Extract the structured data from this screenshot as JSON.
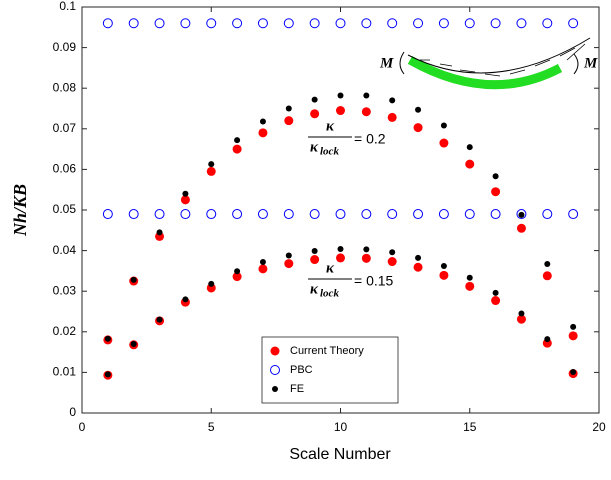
{
  "chart_data": {
    "type": "scatter",
    "xlabel": "Scale Number",
    "ylabel": "Nh/KB",
    "x": [
      1,
      2,
      3,
      4,
      5,
      6,
      7,
      8,
      9,
      10,
      11,
      12,
      13,
      14,
      15,
      16,
      17,
      18,
      19,
      1,
      2,
      3,
      4,
      5,
      6,
      7,
      8,
      9,
      10,
      11,
      12,
      13,
      14,
      15,
      16,
      17,
      18,
      19
    ],
    "series": [
      {
        "name": "Current Theory",
        "color": "#ff0000",
        "marker": "filled",
        "values": [
          0.018,
          0.0325,
          0.0435,
          0.0525,
          0.0595,
          0.065,
          0.069,
          0.072,
          0.0737,
          0.0745,
          0.0742,
          0.0728,
          0.0703,
          0.0665,
          0.0613,
          0.0545,
          0.0455,
          0.0338,
          0.019,
          0.0093,
          0.0168,
          0.0227,
          0.0273,
          0.0308,
          0.0336,
          0.0355,
          0.0368,
          0.0378,
          0.0382,
          0.0381,
          0.0373,
          0.0359,
          0.0339,
          0.0312,
          0.0277,
          0.0231,
          0.0172,
          0.0097
        ]
      },
      {
        "name": "PBC",
        "color": "#0000ff",
        "marker": "hollow",
        "values": [
          0.096,
          0.096,
          0.096,
          0.096,
          0.096,
          0.096,
          0.096,
          0.096,
          0.096,
          0.096,
          0.096,
          0.096,
          0.096,
          0.096,
          0.096,
          0.096,
          0.096,
          0.096,
          0.096,
          0.049,
          0.049,
          0.049,
          0.049,
          0.049,
          0.049,
          0.049,
          0.049,
          0.049,
          0.049,
          0.049,
          0.049,
          0.049,
          0.049,
          0.049,
          0.049,
          0.049,
          0.049,
          0.049
        ]
      },
      {
        "name": "FE",
        "color": "#000000",
        "marker": "small",
        "values": [
          0.0183,
          0.0328,
          0.0445,
          0.054,
          0.0613,
          0.0672,
          0.0718,
          0.075,
          0.0772,
          0.0782,
          0.0782,
          0.077,
          0.0747,
          0.0708,
          0.0655,
          0.0583,
          0.0488,
          0.0367,
          0.0212,
          0.0095,
          0.017,
          0.023,
          0.028,
          0.0318,
          0.0349,
          0.0372,
          0.0388,
          0.0399,
          0.0404,
          0.0403,
          0.0396,
          0.0382,
          0.0362,
          0.0333,
          0.0296,
          0.0245,
          0.0182,
          0.0101
        ]
      }
    ],
    "xlim": [
      0,
      20
    ],
    "xticks": [
      0,
      5,
      10,
      15,
      20
    ],
    "ylim": [
      0,
      0.1
    ],
    "yticks": [
      0,
      0.01,
      0.02,
      0.03,
      0.04,
      0.05,
      0.06,
      0.07,
      0.08,
      0.09,
      0.1
    ],
    "legend": "lower center",
    "annotations": [
      {
        "numerator": "κ",
        "denominator": "κ",
        "subscript": "lock",
        "text": "= 0.2"
      },
      {
        "numerator": "κ",
        "denominator": "κ",
        "subscript": "lock",
        "text": "= 0.15"
      }
    ],
    "inset_labels": [
      "M",
      "M"
    ]
  }
}
